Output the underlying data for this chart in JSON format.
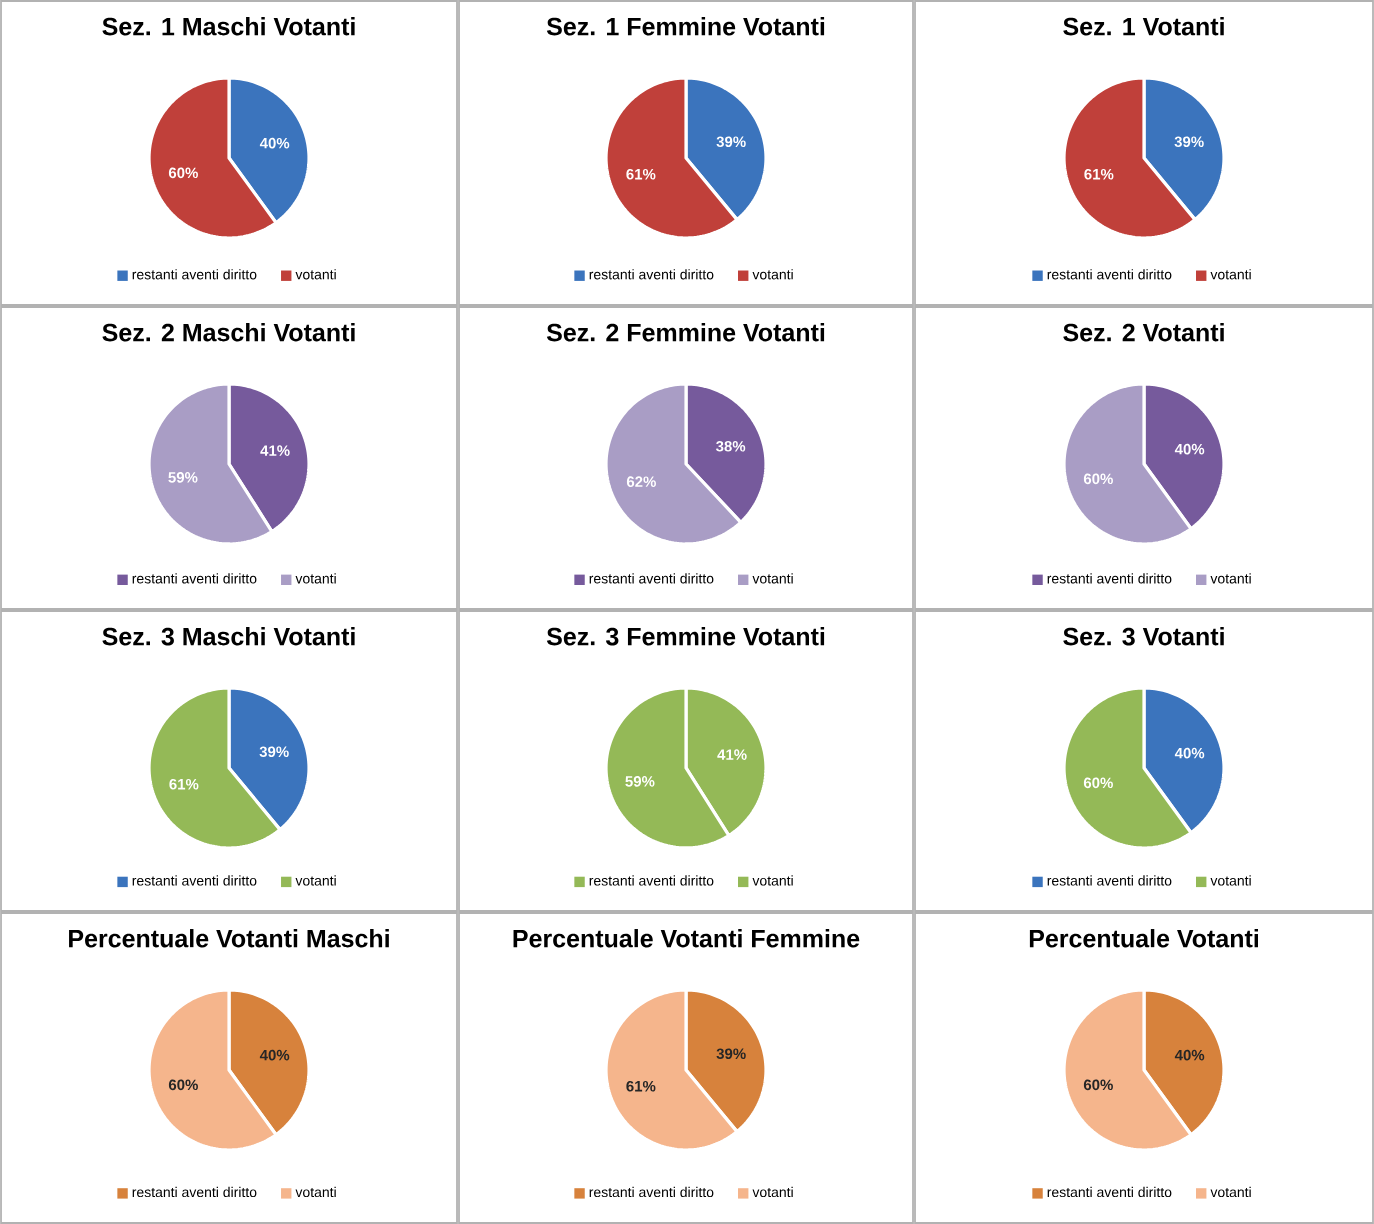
{
  "chart_data": [
    {
      "type": "pie",
      "title": "Sez. 1 Maschi Votanti",
      "categories": [
        "restanti aventi diritto",
        "votanti"
      ],
      "values": [
        40,
        60
      ],
      "value_labels": [
        "40%",
        "60%"
      ],
      "colors": [
        "#3b74bd",
        "#c0403a"
      ],
      "legend": "bottom"
    },
    {
      "type": "pie",
      "title": "Sez. 1 Femmine Votanti",
      "categories": [
        "restanti aventi diritto",
        "votanti"
      ],
      "values": [
        39,
        61
      ],
      "value_labels": [
        "39%",
        "61%"
      ],
      "colors": [
        "#3b74bd",
        "#c0403a"
      ],
      "legend": "bottom"
    },
    {
      "type": "pie",
      "title": "Sez. 1 Votanti",
      "categories": [
        "restanti aventi diritto",
        "votanti"
      ],
      "values": [
        39,
        61
      ],
      "value_labels": [
        "39%",
        "61%"
      ],
      "colors": [
        "#3b74bd",
        "#c0403a"
      ],
      "legend": "bottom"
    },
    {
      "type": "pie",
      "title": "Sez. 2 Maschi Votanti",
      "categories": [
        "restanti aventi diritto",
        "votanti"
      ],
      "values": [
        41,
        59
      ],
      "value_labels": [
        "41%",
        "59%"
      ],
      "colors": [
        "#765a9c",
        "#a99dc5"
      ],
      "legend": "bottom"
    },
    {
      "type": "pie",
      "title": "Sez. 2 Femmine Votanti",
      "categories": [
        "restanti aventi diritto",
        "votanti"
      ],
      "values": [
        38,
        62
      ],
      "value_labels": [
        "38%",
        "62%"
      ],
      "colors": [
        "#765a9c",
        "#a99dc5"
      ],
      "legend": "bottom"
    },
    {
      "type": "pie",
      "title": "Sez. 2 Votanti",
      "categories": [
        "restanti aventi diritto",
        "votanti"
      ],
      "values": [
        40,
        60
      ],
      "value_labels": [
        "40%",
        "60%"
      ],
      "colors": [
        "#765a9c",
        "#a99dc5"
      ],
      "legend": "bottom"
    },
    {
      "type": "pie",
      "title": "Sez. 3 Maschi Votanti",
      "categories": [
        "restanti aventi diritto",
        "votanti"
      ],
      "values": [
        39,
        61
      ],
      "value_labels": [
        "39%",
        "61%"
      ],
      "colors": [
        "#3b74bd",
        "#94b957"
      ],
      "legend": "bottom"
    },
    {
      "type": "pie",
      "title": "Sez. 3 Femmine Votanti",
      "categories": [
        "restanti aventi diritto",
        "votanti"
      ],
      "values": [
        41,
        59
      ],
      "value_labels": [
        "41%",
        "59%"
      ],
      "colors": [
        "#94b957",
        "#94b957"
      ],
      "legend": "bottom"
    },
    {
      "type": "pie",
      "title": "Sez. 3 Votanti",
      "categories": [
        "restanti aventi diritto",
        "votanti"
      ],
      "values": [
        40,
        60
      ],
      "value_labels": [
        "40%",
        "60%"
      ],
      "colors": [
        "#3b74bd",
        "#94b957"
      ],
      "legend": "bottom"
    },
    {
      "type": "pie",
      "title": "Percentuale Votanti Maschi",
      "categories": [
        "restanti aventi diritto",
        "votanti"
      ],
      "values": [
        40,
        60
      ],
      "value_labels": [
        "40%",
        "60%"
      ],
      "colors": [
        "#d7823c",
        "#f5b58c"
      ],
      "legend": "bottom"
    },
    {
      "type": "pie",
      "title": "Percentuale Votanti Femmine",
      "categories": [
        "restanti aventi diritto",
        "votanti"
      ],
      "values": [
        39,
        61
      ],
      "value_labels": [
        "39%",
        "61%"
      ],
      "colors": [
        "#d7823c",
        "#f5b58c"
      ],
      "legend": "bottom"
    },
    {
      "type": "pie",
      "title": "Percentuale Votanti",
      "categories": [
        "restanti aventi diritto",
        "votanti"
      ],
      "values": [
        40,
        60
      ],
      "value_labels": [
        "40%",
        "60%"
      ],
      "colors": [
        "#d7823c",
        "#f5b58c"
      ],
      "legend": "bottom"
    }
  ]
}
